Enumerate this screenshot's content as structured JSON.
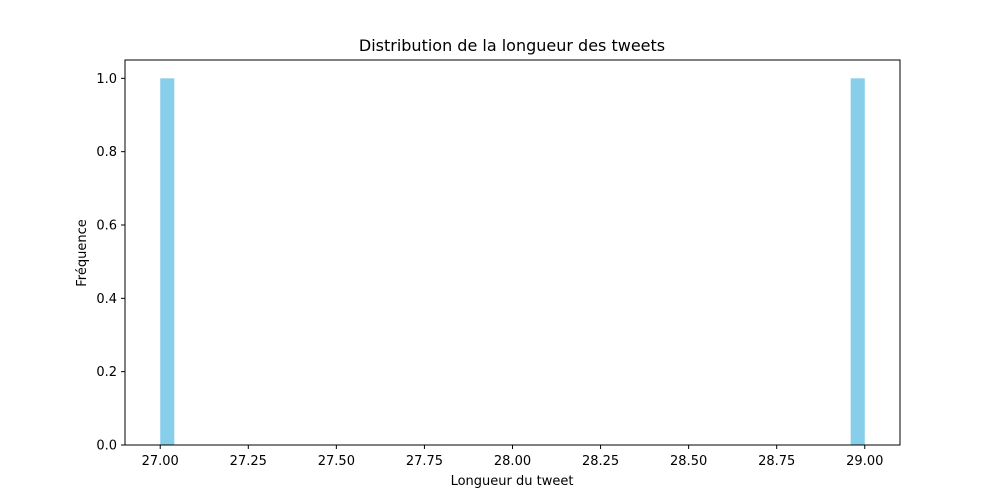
{
  "chart_data": {
    "type": "bar",
    "title": "Distribution de la longueur des tweets",
    "xlabel": "Longueur du tweet",
    "ylabel": "Fréquence",
    "xlim": [
      26.9,
      29.1
    ],
    "ylim": [
      0.0,
      1.05
    ],
    "x_ticks": [
      27.0,
      27.25,
      27.5,
      27.75,
      28.0,
      28.25,
      28.5,
      28.75,
      29.0
    ],
    "x_tick_labels": [
      "27.00",
      "27.25",
      "27.50",
      "27.75",
      "28.00",
      "28.25",
      "28.50",
      "28.75",
      "29.00"
    ],
    "y_ticks": [
      0.0,
      0.2,
      0.4,
      0.6,
      0.8,
      1.0
    ],
    "y_tick_labels": [
      "0.0",
      "0.2",
      "0.4",
      "0.6",
      "0.8",
      "1.0"
    ],
    "bars": [
      {
        "x_start": 27.0,
        "x_end": 27.04,
        "value": 1.0
      },
      {
        "x_start": 28.96,
        "x_end": 29.0,
        "value": 1.0
      }
    ],
    "bar_color": "#87ceeb",
    "grid": false,
    "legend": "none"
  }
}
